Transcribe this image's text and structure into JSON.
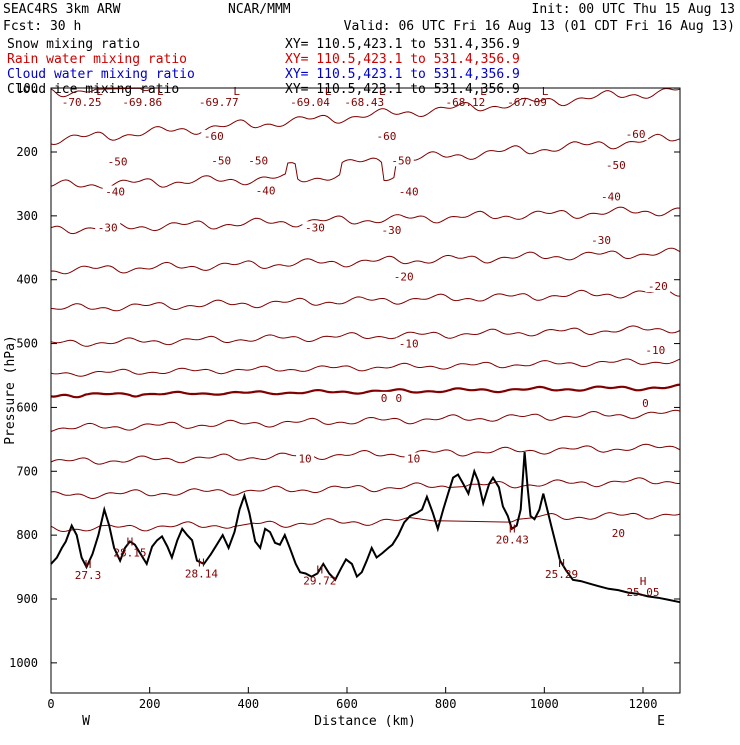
{
  "header": {
    "model": "SEAC4RS  3km ARW",
    "org": "NCAR/MMM",
    "init": "Init: 00 UTC Thu 15 Aug 13",
    "fcst": "Fcst:   30 h",
    "valid": "Valid: 06 UTC Fri 16 Aug 13 (01 CDT Fri 16 Aug 13)"
  },
  "legend": [
    {
      "label": "Snow mixing ratio",
      "xy": "XY= 110.5,423.1 to 531.4,356.9",
      "color": "#000000"
    },
    {
      "label": "Rain water mixing ratio",
      "xy": "XY= 110.5,423.1 to 531.4,356.9",
      "color": "#cc0000"
    },
    {
      "label": "Cloud water mixing ratio",
      "xy": "XY= 110.5,423.1 to 531.4,356.9",
      "color": "#0000cc"
    },
    {
      "label": "Cloud ice mixing ratio",
      "xy": "XY= 110.5,423.1 to 531.4,356.9",
      "color": "#000000"
    }
  ],
  "chart_data": {
    "type": "line",
    "xlabel": "Distance (km)",
    "ylabel": "Pressure (hPa)",
    "xlim": [
      0,
      1275
    ],
    "ylim": [
      1050,
      100
    ],
    "xticks": [
      0,
      200,
      400,
      600,
      800,
      1000,
      1200
    ],
    "yticks": [
      100,
      200,
      300,
      400,
      500,
      600,
      700,
      800,
      900,
      1000
    ],
    "direction_labels": {
      "left": "W",
      "right": "E"
    },
    "contour_color": "#800000",
    "terrain_color": "#000000",
    "isotherm_levels": [
      -70,
      -65,
      -60,
      -55,
      -50,
      -45,
      -40,
      -35,
      -30,
      -25,
      -20,
      -15,
      -10,
      -5,
      0,
      5,
      10,
      15,
      20
    ],
    "isotherm_labels": [
      {
        "text": "-60",
        "x": 330,
        "p": 175
      },
      {
        "text": "-60",
        "x": 680,
        "p": 175
      },
      {
        "text": "-60",
        "x": 1185,
        "p": 172
      },
      {
        "text": "-50",
        "x": 135,
        "p": 215
      },
      {
        "text": "-50",
        "x": 345,
        "p": 213
      },
      {
        "text": "-50",
        "x": 420,
        "p": 213
      },
      {
        "text": "-50",
        "x": 710,
        "p": 213
      },
      {
        "text": "-50",
        "x": 1145,
        "p": 220
      },
      {
        "text": "-40",
        "x": 130,
        "p": 262
      },
      {
        "text": "-40",
        "x": 435,
        "p": 260
      },
      {
        "text": "-40",
        "x": 725,
        "p": 262
      },
      {
        "text": "-40",
        "x": 1135,
        "p": 270
      },
      {
        "text": "-30",
        "x": 115,
        "p": 318
      },
      {
        "text": "-30",
        "x": 535,
        "p": 318
      },
      {
        "text": "-30",
        "x": 690,
        "p": 322
      },
      {
        "text": "-30",
        "x": 1115,
        "p": 338
      },
      {
        "text": "-20",
        "x": 715,
        "p": 395
      },
      {
        "text": "-20",
        "x": 1230,
        "p": 410
      },
      {
        "text": "-10",
        "x": 725,
        "p": 500
      },
      {
        "text": "-10",
        "x": 1225,
        "p": 510
      },
      {
        "text": "0",
        "x": 675,
        "p": 585
      },
      {
        "text": "0",
        "x": 705,
        "p": 585
      },
      {
        "text": "0",
        "x": 1205,
        "p": 593
      },
      {
        "text": "10",
        "x": 515,
        "p": 680
      },
      {
        "text": "10",
        "x": 735,
        "p": 680
      },
      {
        "text": "20",
        "x": 1150,
        "p": 797
      }
    ],
    "highs": [
      {
        "mark": "H",
        "value": "27.3",
        "x": 75
      },
      {
        "mark": "H",
        "value": "28.15",
        "x": 160
      },
      {
        "mark": "H",
        "value": "28.14",
        "x": 305
      },
      {
        "mark": "H",
        "value": "29.72",
        "x": 545
      },
      {
        "mark": "H",
        "value": "20.43",
        "x": 935
      },
      {
        "mark": "H",
        "value": "25.29",
        "x": 1035
      },
      {
        "mark": "H",
        "value": "25.05",
        "x": 1200
      }
    ],
    "lows": [
      {
        "mark": "L",
        "value": "-70.25",
        "x": 62
      },
      {
        "mark": "L",
        "value": "-69.86",
        "x": 185
      },
      {
        "mark": "L",
        "value": "-69.77",
        "x": 340
      },
      {
        "mark": "L",
        "value": "-69.04",
        "x": 525
      },
      {
        "mark": "L",
        "value": "-68.43",
        "x": 635
      },
      {
        "mark": "L",
        "value": "-68.12",
        "x": 840
      },
      {
        "mark": "L",
        "value": "-67.09",
        "x": 965
      }
    ],
    "terrain": [
      [
        0,
        845
      ],
      [
        12,
        835
      ],
      [
        22,
        820
      ],
      [
        30,
        810
      ],
      [
        42,
        785
      ],
      [
        52,
        800
      ],
      [
        62,
        835
      ],
      [
        72,
        850
      ],
      [
        84,
        830
      ],
      [
        96,
        800
      ],
      [
        108,
        760
      ],
      [
        118,
        785
      ],
      [
        128,
        820
      ],
      [
        140,
        840
      ],
      [
        150,
        820
      ],
      [
        160,
        810
      ],
      [
        170,
        815
      ],
      [
        182,
        830
      ],
      [
        194,
        845
      ],
      [
        205,
        818
      ],
      [
        215,
        808
      ],
      [
        225,
        802
      ],
      [
        236,
        818
      ],
      [
        245,
        835
      ],
      [
        256,
        808
      ],
      [
        266,
        790
      ],
      [
        276,
        800
      ],
      [
        286,
        808
      ],
      [
        296,
        840
      ],
      [
        310,
        845
      ],
      [
        324,
        830
      ],
      [
        336,
        815
      ],
      [
        348,
        800
      ],
      [
        360,
        820
      ],
      [
        372,
        795
      ],
      [
        382,
        760
      ],
      [
        392,
        738
      ],
      [
        402,
        765
      ],
      [
        414,
        810
      ],
      [
        424,
        820
      ],
      [
        434,
        790
      ],
      [
        444,
        795
      ],
      [
        454,
        812
      ],
      [
        464,
        815
      ],
      [
        474,
        800
      ],
      [
        484,
        820
      ],
      [
        496,
        845
      ],
      [
        505,
        858
      ],
      [
        516,
        860
      ],
      [
        528,
        865
      ],
      [
        540,
        860
      ],
      [
        552,
        845
      ],
      [
        564,
        860
      ],
      [
        576,
        870
      ],
      [
        588,
        852
      ],
      [
        598,
        838
      ],
      [
        610,
        845
      ],
      [
        620,
        865
      ],
      [
        630,
        858
      ],
      [
        640,
        840
      ],
      [
        650,
        820
      ],
      [
        660,
        835
      ],
      [
        672,
        828
      ],
      [
        684,
        820
      ],
      [
        692,
        815
      ],
      [
        704,
        800
      ],
      [
        716,
        780
      ],
      [
        728,
        770
      ],
      [
        742,
        765
      ],
      [
        752,
        760
      ],
      [
        762,
        740
      ],
      [
        774,
        765
      ],
      [
        784,
        790
      ],
      [
        795,
        760
      ],
      [
        805,
        735
      ],
      [
        815,
        710
      ],
      [
        825,
        705
      ],
      [
        836,
        720
      ],
      [
        846,
        735
      ],
      [
        858,
        700
      ],
      [
        866,
        715
      ],
      [
        876,
        750
      ],
      [
        888,
        720
      ],
      [
        896,
        710
      ],
      [
        908,
        725
      ],
      [
        916,
        755
      ],
      [
        926,
        770
      ],
      [
        934,
        790
      ],
      [
        944,
        785
      ],
      [
        952,
        760
      ],
      [
        960,
        670
      ],
      [
        966,
        725
      ],
      [
        972,
        770
      ],
      [
        980,
        775
      ],
      [
        990,
        760
      ],
      [
        998,
        735
      ],
      [
        1006,
        760
      ],
      [
        1014,
        785
      ],
      [
        1022,
        810
      ],
      [
        1032,
        840
      ],
      [
        1044,
        855
      ],
      [
        1058,
        870
      ],
      [
        1074,
        872
      ],
      [
        1092,
        876
      ],
      [
        1110,
        880
      ],
      [
        1130,
        884
      ],
      [
        1150,
        886
      ],
      [
        1170,
        890
      ],
      [
        1190,
        892
      ],
      [
        1210,
        896
      ],
      [
        1230,
        898
      ],
      [
        1250,
        901
      ],
      [
        1275,
        905
      ]
    ]
  }
}
